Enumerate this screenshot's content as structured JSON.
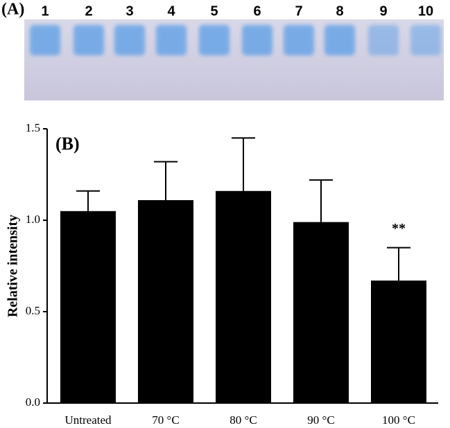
{
  "gel": {
    "label": "(A)",
    "lanes": [
      "1",
      "2",
      "3",
      "4",
      "5",
      "6",
      "7",
      "8",
      "9",
      "10"
    ]
  },
  "chart_data": {
    "type": "bar",
    "panel_label": "(B)",
    "y_label": "Relative intensity",
    "categories": [
      "Untreated",
      "70 °C",
      "80 °C",
      "90 °C",
      "100 °C"
    ],
    "values": [
      1.05,
      1.11,
      1.16,
      0.99,
      0.67
    ],
    "errors": [
      0.11,
      0.21,
      0.29,
      0.23,
      0.18
    ],
    "color": "#000000",
    "ylim": [
      0,
      1.5
    ],
    "yticks": [
      {
        "value": 0,
        "label": "0.0"
      },
      0.5,
      {
        "value": 1,
        "label": "1.0"
      },
      {
        "value": 1.5,
        "label": "1.5"
      }
    ],
    "annotations": [
      {
        "text": "**",
        "x": "100 °C"
      }
    ]
  }
}
